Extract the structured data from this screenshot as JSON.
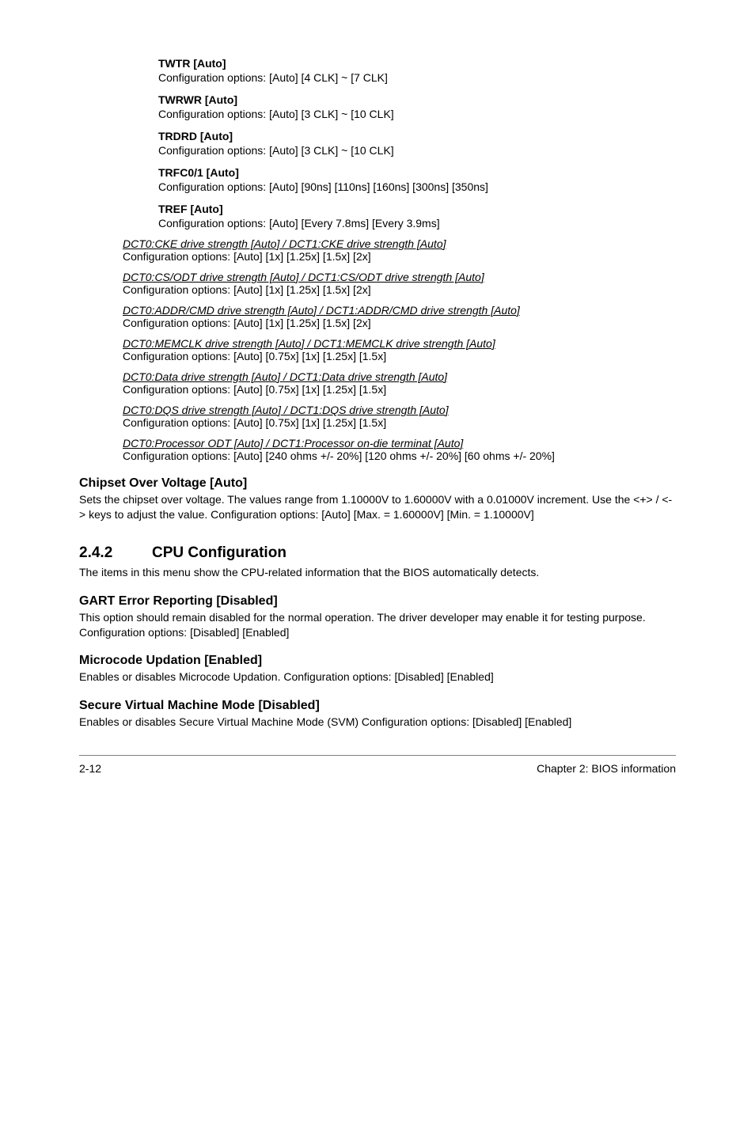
{
  "timing": {
    "twtr": {
      "label": "TWTR [Auto]",
      "config": "Configuration options: [Auto] [4 CLK] ~ [7 CLK]"
    },
    "twrwr": {
      "label": "TWRWR [Auto]",
      "config": "Configuration options: [Auto] [3 CLK] ~ [10 CLK]"
    },
    "trdrd": {
      "label": "TRDRD [Auto]",
      "config": "Configuration options: [Auto] [3 CLK] ~ [10 CLK]"
    },
    "trfc": {
      "label": "TRFC0/1 [Auto]",
      "config": "Configuration options: [Auto] [90ns] [110ns] [160ns] [300ns] [350ns]"
    },
    "tref": {
      "label": "TREF [Auto]",
      "config": "Configuration options: [Auto] [Every 7.8ms] [Every 3.9ms]"
    }
  },
  "drive": {
    "cke": {
      "label": "DCT0:CKE drive strength [Auto] / DCT1:CKE drive strength [Auto]",
      "config": "Configuration options: [Auto] [1x] [1.25x] [1.5x] [2x]"
    },
    "csodt": {
      "label": "DCT0:CS/ODT drive strength [Auto] / DCT1:CS/ODT drive strength [Auto]",
      "config": "Configuration options: [Auto] [1x] [1.25x] [1.5x] [2x]"
    },
    "addrcmd": {
      "label": "DCT0:ADDR/CMD drive strength [Auto] / DCT1:ADDR/CMD drive strength [Auto]",
      "config": "Configuration options: [Auto] [1x] [1.25x] [1.5x] [2x]"
    },
    "memclk": {
      "label": "DCT0:MEMCLK drive strength [Auto] / DCT1:MEMCLK drive strength [Auto]",
      "config": "Configuration options: [Auto] [0.75x] [1x] [1.25x] [1.5x]"
    },
    "data": {
      "label": "DCT0:Data drive strength [Auto] / DCT1:Data drive strength [Auto]",
      "config": "Configuration options: [Auto] [0.75x] [1x] [1.25x] [1.5x]"
    },
    "dqs": {
      "label": "DCT0:DQS drive strength [Auto] / DCT1:DQS drive strength [Auto]",
      "config": "Configuration options: [Auto] [0.75x] [1x] [1.25x] [1.5x]"
    },
    "odt": {
      "label": "DCT0:Processor ODT [Auto] / DCT1:Processor on-die terminat [Auto]",
      "config": "Configuration options: [Auto] [240 ohms +/- 20%] [120 ohms +/- 20%] [60 ohms +/- 20%]"
    }
  },
  "chipset": {
    "heading": "Chipset Over Voltage [Auto]",
    "body": "Sets the chipset over voltage. The values range from 1.10000V to 1.60000V with a 0.01000V increment. Use the <+> / <-> keys to adjust the value. Configuration options: [Auto] [Max. = 1.60000V] [Min. = 1.10000V]"
  },
  "cpu_section": {
    "num": "2.4.2",
    "title": "CPU Configuration",
    "intro": "The items in this menu show the CPU-related information that the BIOS automatically detects."
  },
  "gart": {
    "heading": "GART Error Reporting [Disabled]",
    "body": "This option should remain disabled for the normal operation. The driver developer may enable it for testing purpose. Configuration options: [Disabled] [Enabled]"
  },
  "microcode": {
    "heading": "Microcode Updation [Enabled]",
    "body": "Enables or disables Microcode Updation. Configuration options: [Disabled] [Enabled]"
  },
  "svm": {
    "heading": "Secure Virtual Machine Mode [Disabled]",
    "body": "Enables or disables Secure Virtual Machine Mode (SVM) Configuration options: [Disabled] [Enabled]"
  },
  "footer": {
    "left": "2-12",
    "right": "Chapter 2: BIOS information"
  }
}
